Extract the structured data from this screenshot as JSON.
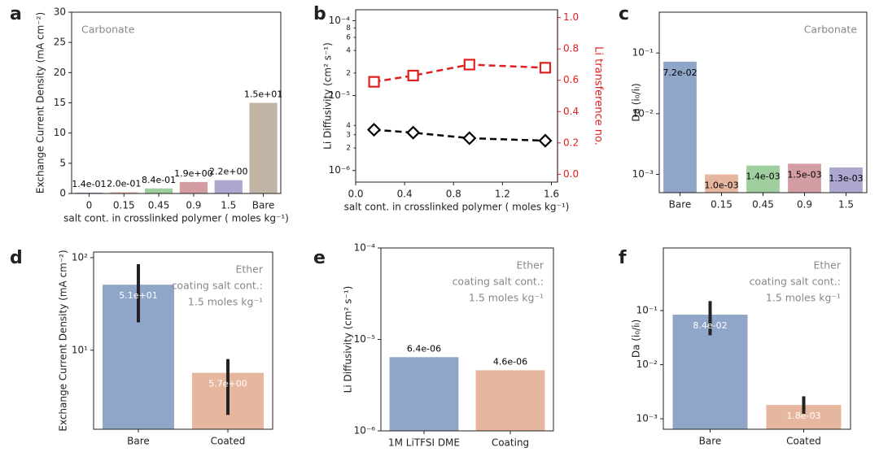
{
  "chart_data": [
    {
      "type": "bar",
      "panel": "a",
      "scale": "linear",
      "ylabel": "Exchange Current Density (mA cm⁻²)",
      "xlabel": "salt cont. in crosslinked polymer ( moles kg⁻¹)",
      "annotation": [
        "Carbonate"
      ],
      "annotation_corner": "upper left",
      "categories": [
        "0",
        "0.15",
        "0.45",
        "0.9",
        "1.5",
        "Bare"
      ],
      "values": [
        0.14,
        0.2,
        0.84,
        1.9,
        2.2,
        15
      ],
      "value_labels": [
        "1.4e-01",
        "2.0e-01",
        "8.4e-01",
        "1.9e+00",
        "2.2e+00",
        "1.5e+01"
      ],
      "value_label_position": "above",
      "value_label_color": "#000000",
      "colors": [
        "#8fa6c8",
        "#e7b69e",
        "#9fcf9f",
        "#d49ca3",
        "#aba7cf",
        "#c3b5a6"
      ],
      "ylim": [
        0,
        30
      ],
      "yticks": [
        0,
        5,
        10,
        15,
        20,
        25,
        30
      ]
    },
    {
      "type": "line",
      "panel": "b",
      "scale": "log",
      "ylabel": "Li Diffusivity (cm² s⁻¹)",
      "y2label": "Li transference no.",
      "y2color": "#e02020",
      "xlabel": "salt cont. in crosslinked polymer ( moles kg⁻¹)",
      "x": [
        0.15,
        0.47,
        0.93,
        1.55
      ],
      "series": [
        {
          "color": "#000000",
          "marker": "diamond",
          "values": [
            3.5e-06,
            3.2e-06,
            2.7e-06,
            2.5e-06
          ]
        },
        {
          "color": "#e02020",
          "marker": "square",
          "axis": "y2",
          "values": [
            0.59,
            0.63,
            0.7,
            0.68
          ]
        }
      ],
      "xlim": [
        0,
        1.65
      ],
      "xticks": [
        {
          "value": 0,
          "label": "0.0"
        },
        0.4,
        0.8,
        1.2,
        1.6
      ],
      "ylim": [
        7e-07,
        0.00014
      ],
      "yticks": [
        {
          "value": 1e-06,
          "label": "10⁻⁶"
        },
        {
          "value": 1e-05,
          "label": "10⁻⁵"
        },
        {
          "value": 0.0001,
          "label": "10⁻⁴"
        }
      ],
      "yminorticks": [
        {
          "value": 2e-06,
          "label": "2"
        },
        {
          "value": 3e-06,
          "label": "3"
        },
        {
          "value": 4e-06,
          "label": "4"
        },
        {
          "value": 2e-05,
          "label": "2"
        },
        {
          "value": 4e-05,
          "label": "4"
        },
        {
          "value": 6e-05,
          "label": "6"
        },
        {
          "value": 8e-05,
          "label": "8"
        }
      ],
      "y2lim": [
        -0.05,
        1.05
      ],
      "y2ticks": [
        {
          "value": 0,
          "label": "0.0"
        },
        0.2,
        0.4,
        0.6,
        0.8,
        {
          "value": 1,
          "label": "1.0"
        }
      ]
    },
    {
      "type": "bar",
      "panel": "c",
      "scale": "log",
      "ylabel": "Da (i₀/iₗ)",
      "annotation": [
        "Carbonate"
      ],
      "annotation_corner": "upper right",
      "categories": [
        "Bare",
        "0.15",
        "0.45",
        "0.9",
        "1.5"
      ],
      "values": [
        0.072,
        0.001,
        0.0014,
        0.0015,
        0.0013
      ],
      "value_labels": [
        "7.2e-02",
        "1.0e-03",
        "1.4e-03",
        "1.5e-03",
        "1.3e-03"
      ],
      "value_label_position": "inside",
      "value_label_color": "#000000",
      "colors": [
        "#8fa6c8",
        "#e7b69e",
        "#9fcf9f",
        "#d49ca3",
        "#aba7cf"
      ],
      "ylim": [
        0.0005,
        0.47
      ],
      "yticks": [
        {
          "value": 0.001,
          "label": "10⁻³"
        },
        {
          "value": 0.01,
          "label": "10⁻²"
        },
        {
          "value": 0.1,
          "label": "10⁻¹"
        }
      ]
    },
    {
      "type": "bar",
      "panel": "d",
      "scale": "log",
      "ylabel": "Exchange Current Density (mA cm⁻²)",
      "annotation": [
        "Ether",
        "coating salt cont.:",
        "1.5 moles kg⁻¹"
      ],
      "annotation_corner": "upper right",
      "categories": [
        "Bare",
        "Coated"
      ],
      "values": [
        51,
        5.7
      ],
      "value_labels": [
        "5.1e+01",
        "5.7e+00"
      ],
      "value_label_position": "inside",
      "value_label_color": "#ffffff",
      "ranges": [
        [
          20,
          85
        ],
        [
          2,
          8
        ]
      ],
      "colors": [
        "#8fa6c8",
        "#e7b69e"
      ],
      "ylim": [
        1.4,
        115
      ],
      "yticks": [
        {
          "value": 10,
          "label": "10¹"
        },
        {
          "value": 100,
          "label": "10²"
        }
      ]
    },
    {
      "type": "bar",
      "panel": "e",
      "scale": "log",
      "ylabel": "Li Diffusivity (cm² s⁻¹)",
      "annotation": [
        "Ether",
        "coating salt cont.:",
        "1.5 moles kg⁻¹"
      ],
      "annotation_corner": "upper right",
      "categories": [
        "1M LiTFSI DME",
        "Coating"
      ],
      "values": [
        6.4e-06,
        4.6e-06
      ],
      "value_labels": [
        "6.4e-06",
        "4.6e-06"
      ],
      "value_label_position": "above",
      "value_label_color": "#000000",
      "colors": [
        "#8fa6c8",
        "#e7b69e"
      ],
      "ylim": [
        1e-06,
        0.0001
      ],
      "yticks": [
        {
          "value": 1e-06,
          "label": "10⁻⁶"
        },
        {
          "value": 1e-05,
          "label": "10⁻⁵"
        },
        {
          "value": 0.0001,
          "label": "10⁻⁴"
        }
      ]
    },
    {
      "type": "bar",
      "panel": "f",
      "scale": "log",
      "ylabel": "Da (i₀/iₗ)",
      "annotation": [
        "Ether",
        "coating salt cont.:",
        "1.5 moles kg⁻¹"
      ],
      "annotation_corner": "upper right",
      "categories": [
        "Bare",
        "Coated"
      ],
      "values": [
        0.084,
        0.0018
      ],
      "value_labels": [
        "8.4e-02",
        "1.8e-03"
      ],
      "value_label_position": "inside",
      "value_label_color": "#ffffff",
      "ranges": [
        [
          0.035,
          0.15
        ],
        [
          0.0012,
          0.0026
        ]
      ],
      "colors": [
        "#8fa6c8",
        "#e7b69e"
      ],
      "ylim": [
        0.00064,
        1.44
      ],
      "yticks": [
        {
          "value": 0.001,
          "label": "10⁻³"
        },
        {
          "value": 0.01,
          "label": "10⁻²"
        },
        {
          "value": 0.1,
          "label": "10⁻¹"
        }
      ]
    }
  ]
}
